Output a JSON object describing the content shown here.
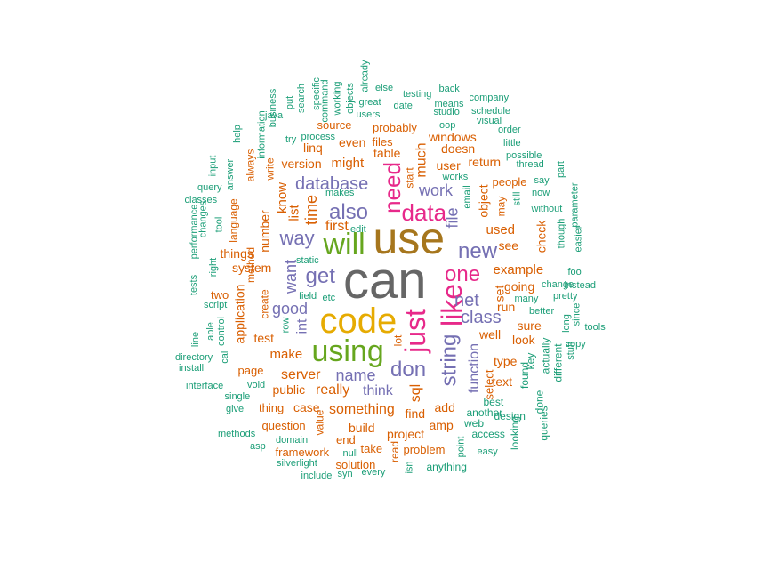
{
  "colors": {
    "teal": "#1b9e77",
    "orange": "#d95f02",
    "purple": "#7570b3",
    "pink": "#e7298a",
    "green": "#66a61e",
    "gold": "#e6ab02",
    "brown": "#a6761d",
    "gray": "#666666"
  },
  "words": [
    {
      "text": "can",
      "color": "gray"
    },
    {
      "text": "use",
      "color": "brown"
    },
    {
      "text": "code",
      "color": "gold"
    },
    {
      "text": "using",
      "color": "green"
    },
    {
      "text": "will",
      "color": "green"
    },
    {
      "text": "just",
      "color": "pink"
    },
    {
      "text": "like",
      "color": "pink"
    },
    {
      "text": "data",
      "color": "pink"
    },
    {
      "text": "need",
      "color": "pink"
    },
    {
      "text": "also",
      "color": "purple"
    },
    {
      "text": "don",
      "color": "purple"
    },
    {
      "text": "get",
      "color": "purple"
    },
    {
      "text": "one",
      "color": "pink"
    },
    {
      "text": "new",
      "color": "purple"
    },
    {
      "text": "string",
      "color": "purple"
    },
    {
      "text": "way",
      "color": "purple"
    },
    {
      "text": "net",
      "color": "purple"
    },
    {
      "text": "class",
      "color": "purple"
    },
    {
      "text": "database",
      "color": "purple"
    },
    {
      "text": "name",
      "color": "purple"
    },
    {
      "text": "good",
      "color": "purple"
    },
    {
      "text": "file",
      "color": "purple"
    },
    {
      "text": "want",
      "color": "purple"
    },
    {
      "text": "time",
      "color": "orange"
    },
    {
      "text": "work",
      "color": "purple"
    },
    {
      "text": "first",
      "color": "orange"
    },
    {
      "text": "int",
      "color": "purple"
    },
    {
      "text": "function",
      "color": "purple"
    },
    {
      "text": "think",
      "color": "purple"
    },
    {
      "text": "much",
      "color": "orange"
    },
    {
      "text": "really",
      "color": "orange"
    },
    {
      "text": "sql",
      "color": "orange"
    },
    {
      "text": "server",
      "color": "orange"
    },
    {
      "text": "something",
      "color": "orange"
    },
    {
      "text": "list",
      "color": "orange"
    },
    {
      "text": "know",
      "color": "orange"
    },
    {
      "text": "make",
      "color": "orange"
    },
    {
      "text": "used",
      "color": "orange"
    },
    {
      "text": "example",
      "color": "orange"
    },
    {
      "text": "set",
      "color": "orange"
    },
    {
      "text": "object",
      "color": "orange"
    },
    {
      "text": "might",
      "color": "orange"
    },
    {
      "text": "number",
      "color": "orange"
    },
    {
      "text": "user",
      "color": "orange"
    },
    {
      "text": "table",
      "color": "orange"
    },
    {
      "text": "see",
      "color": "orange"
    },
    {
      "text": "application",
      "color": "orange"
    },
    {
      "text": "system",
      "color": "orange"
    },
    {
      "text": "well",
      "color": "orange"
    },
    {
      "text": "test",
      "color": "orange"
    },
    {
      "text": "project",
      "color": "orange"
    },
    {
      "text": "add",
      "color": "orange"
    },
    {
      "text": "amp",
      "color": "orange"
    },
    {
      "text": "find",
      "color": "orange"
    },
    {
      "text": "build",
      "color": "orange"
    },
    {
      "text": "text",
      "color": "orange"
    },
    {
      "text": "type",
      "color": "orange"
    },
    {
      "text": "look",
      "color": "orange"
    },
    {
      "text": "run",
      "color": "orange"
    },
    {
      "text": "going",
      "color": "orange"
    },
    {
      "text": "sure",
      "color": "orange"
    },
    {
      "text": "check",
      "color": "orange"
    },
    {
      "text": "things",
      "color": "orange"
    },
    {
      "text": "version",
      "color": "orange"
    },
    {
      "text": "even",
      "color": "orange"
    },
    {
      "text": "linq",
      "color": "orange"
    },
    {
      "text": "case",
      "color": "orange"
    },
    {
      "text": "public",
      "color": "orange"
    },
    {
      "text": "windows",
      "color": "orange"
    },
    {
      "text": "doesn",
      "color": "orange"
    },
    {
      "text": "return",
      "color": "orange"
    },
    {
      "text": "select",
      "color": "orange"
    },
    {
      "text": "source",
      "color": "orange"
    },
    {
      "text": "probably",
      "color": "orange"
    },
    {
      "text": "files",
      "color": "orange"
    },
    {
      "text": "question",
      "color": "orange"
    },
    {
      "text": "take",
      "color": "orange"
    },
    {
      "text": "end",
      "color": "orange"
    },
    {
      "text": "page",
      "color": "orange"
    },
    {
      "text": "two",
      "color": "orange"
    },
    {
      "text": "thing",
      "color": "orange"
    },
    {
      "text": "problem",
      "color": "orange"
    },
    {
      "text": "solution",
      "color": "orange"
    },
    {
      "text": "framework",
      "color": "orange"
    },
    {
      "text": "people",
      "color": "orange"
    },
    {
      "text": "method",
      "color": "orange"
    },
    {
      "text": "language",
      "color": "orange"
    },
    {
      "text": "always",
      "color": "orange"
    },
    {
      "text": "write",
      "color": "orange"
    },
    {
      "text": "create",
      "color": "orange"
    },
    {
      "text": "may",
      "color": "orange"
    },
    {
      "text": "start",
      "color": "orange"
    },
    {
      "text": "value",
      "color": "orange"
    },
    {
      "text": "lot",
      "color": "orange"
    },
    {
      "text": "read",
      "color": "orange"
    },
    {
      "text": "best",
      "color": "teal"
    },
    {
      "text": "another",
      "color": "teal"
    },
    {
      "text": "web",
      "color": "teal"
    },
    {
      "text": "access",
      "color": "teal"
    },
    {
      "text": "design",
      "color": "teal"
    },
    {
      "text": "found",
      "color": "teal"
    },
    {
      "text": "key",
      "color": "teal"
    },
    {
      "text": "done",
      "color": "teal"
    },
    {
      "text": "actually",
      "color": "teal"
    },
    {
      "text": "different",
      "color": "teal"
    },
    {
      "text": "queries",
      "color": "teal"
    },
    {
      "text": "looking",
      "color": "teal"
    },
    {
      "text": "easy",
      "color": "teal"
    },
    {
      "text": "point",
      "color": "teal"
    },
    {
      "text": "anything",
      "color": "teal"
    },
    {
      "text": "isn",
      "color": "teal"
    },
    {
      "text": "null",
      "color": "teal"
    },
    {
      "text": "every",
      "color": "teal"
    },
    {
      "text": "syn",
      "color": "teal"
    },
    {
      "text": "include",
      "color": "teal"
    },
    {
      "text": "silverlight",
      "color": "teal"
    },
    {
      "text": "domain",
      "color": "teal"
    },
    {
      "text": "asp",
      "color": "teal"
    },
    {
      "text": "methods",
      "color": "teal"
    },
    {
      "text": "give",
      "color": "teal"
    },
    {
      "text": "single",
      "color": "teal"
    },
    {
      "text": "interface",
      "color": "teal"
    },
    {
      "text": "void",
      "color": "teal"
    },
    {
      "text": "install",
      "color": "teal"
    },
    {
      "text": "directory",
      "color": "teal"
    },
    {
      "text": "call",
      "color": "teal"
    },
    {
      "text": "line",
      "color": "teal"
    },
    {
      "text": "able",
      "color": "teal"
    },
    {
      "text": "control",
      "color": "teal"
    },
    {
      "text": "script",
      "color": "teal"
    },
    {
      "text": "tests",
      "color": "teal"
    },
    {
      "text": "performance",
      "color": "teal"
    },
    {
      "text": "right",
      "color": "teal"
    },
    {
      "text": "changes",
      "color": "teal"
    },
    {
      "text": "tool",
      "color": "teal"
    },
    {
      "text": "classes",
      "color": "teal"
    },
    {
      "text": "query",
      "color": "teal"
    },
    {
      "text": "input",
      "color": "teal"
    },
    {
      "text": "answer",
      "color": "teal"
    },
    {
      "text": "help",
      "color": "teal"
    },
    {
      "text": "information",
      "color": "teal"
    },
    {
      "text": "java",
      "color": "teal"
    },
    {
      "text": "business",
      "color": "teal"
    },
    {
      "text": "try",
      "color": "teal"
    },
    {
      "text": "put",
      "color": "teal"
    },
    {
      "text": "search",
      "color": "teal"
    },
    {
      "text": "specific",
      "color": "teal"
    },
    {
      "text": "command",
      "color": "teal"
    },
    {
      "text": "working",
      "color": "teal"
    },
    {
      "text": "objects",
      "color": "teal"
    },
    {
      "text": "already",
      "color": "teal"
    },
    {
      "text": "else",
      "color": "teal"
    },
    {
      "text": "great",
      "color": "teal"
    },
    {
      "text": "users",
      "color": "teal"
    },
    {
      "text": "date",
      "color": "teal"
    },
    {
      "text": "testing",
      "color": "teal"
    },
    {
      "text": "back",
      "color": "teal"
    },
    {
      "text": "means",
      "color": "teal"
    },
    {
      "text": "studio",
      "color": "teal"
    },
    {
      "text": "company",
      "color": "teal"
    },
    {
      "text": "schedule",
      "color": "teal"
    },
    {
      "text": "visual",
      "color": "teal"
    },
    {
      "text": "oop",
      "color": "teal"
    },
    {
      "text": "order",
      "color": "teal"
    },
    {
      "text": "little",
      "color": "teal"
    },
    {
      "text": "possible",
      "color": "teal"
    },
    {
      "text": "thread",
      "color": "teal"
    },
    {
      "text": "process",
      "color": "teal"
    },
    {
      "text": "works",
      "color": "teal"
    },
    {
      "text": "email",
      "color": "teal"
    },
    {
      "text": "still",
      "color": "teal"
    },
    {
      "text": "now",
      "color": "teal"
    },
    {
      "text": "say",
      "color": "teal"
    },
    {
      "text": "part",
      "color": "teal"
    },
    {
      "text": "parameter",
      "color": "teal"
    },
    {
      "text": "easier",
      "color": "teal"
    },
    {
      "text": "without",
      "color": "teal"
    },
    {
      "text": "though",
      "color": "teal"
    },
    {
      "text": "instead",
      "color": "teal"
    },
    {
      "text": "foo",
      "color": "teal"
    },
    {
      "text": "change",
      "color": "teal"
    },
    {
      "text": "pretty",
      "color": "teal"
    },
    {
      "text": "many",
      "color": "teal"
    },
    {
      "text": "better",
      "color": "teal"
    },
    {
      "text": "since",
      "color": "teal"
    },
    {
      "text": "long",
      "color": "teal"
    },
    {
      "text": "tools",
      "color": "teal"
    },
    {
      "text": "copy",
      "color": "teal"
    },
    {
      "text": "stuff",
      "color": "teal"
    },
    {
      "text": "makes",
      "color": "teal"
    },
    {
      "text": "static",
      "color": "teal"
    },
    {
      "text": "field",
      "color": "teal"
    },
    {
      "text": "etc",
      "color": "teal"
    },
    {
      "text": "row",
      "color": "teal"
    },
    {
      "text": "edit",
      "color": "teal"
    },
    {
      "text": "bit",
      "color": "teal"
    }
  ]
}
